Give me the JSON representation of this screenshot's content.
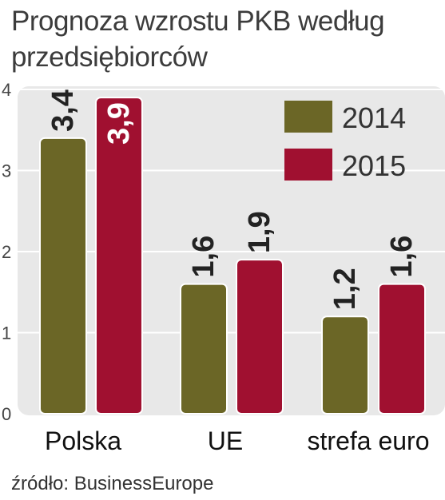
{
  "title_line1": "Prognoza wzrostu PKB według",
  "title_line2": "przedsiębiorców",
  "source": "źródło: BusinessEurope",
  "colors": {
    "series_2014": "#6b6626",
    "series_2015": "#a01030",
    "panel": "#e8e8e8",
    "grid": "#ffffff"
  },
  "chart_data": {
    "type": "bar",
    "categories": [
      "Polska",
      "UE",
      "strefa euro"
    ],
    "series": [
      {
        "name": "2014",
        "values": [
          3.4,
          1.6,
          1.2
        ],
        "labels": [
          "3,4",
          "1,6",
          "1,2"
        ]
      },
      {
        "name": "2015",
        "values": [
          3.9,
          1.9,
          1.6
        ],
        "labels": [
          "3,9",
          "1,9",
          "1,6"
        ]
      }
    ],
    "yticks": [
      "0",
      "1",
      "2",
      "3",
      "4"
    ],
    "ylim": [
      0,
      4
    ],
    "legend_position": "top-right",
    "grid": true
  }
}
